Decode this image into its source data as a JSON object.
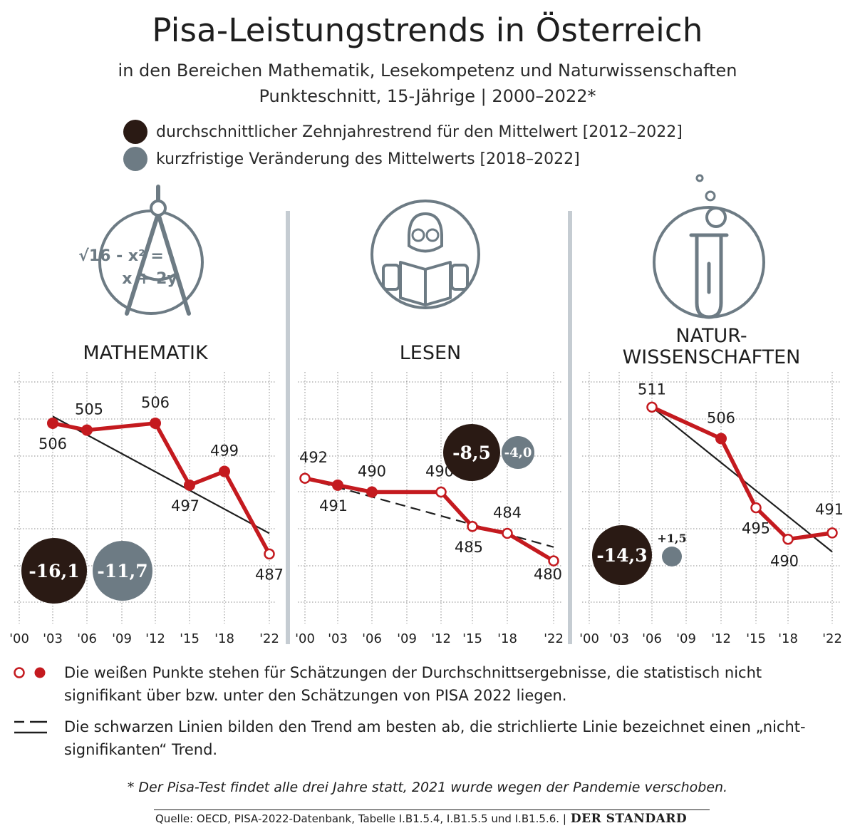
{
  "title": "Pisa-Leistungstrends in Österreich",
  "subtitle": "in den Bereichen Mathematik, Lesekompetenz und Naturwissenschaften",
  "subtitle2": "Punkteschnitt, 15-Jährige | 2000–2022*",
  "legend": {
    "trend10": "durchschnittlicher Zehnjahrestrend für den Mittelwert [2012–2022]",
    "short": "kurzfristige Veränderung des Mittelwerts [2018–2022]"
  },
  "colors": {
    "line": "#c41a1f",
    "dark_bubble": "#2a1a14",
    "grey_bubble": "#6d7b84",
    "divider": "#c5ccd2",
    "icon": "#6d7b84"
  },
  "icons": [
    "compass-formula-icon",
    "reader-book-icon",
    "test-tube-icon"
  ],
  "chart_data": [
    {
      "type": "line",
      "title": "MATHEMATIK",
      "x": [
        2003,
        2006,
        2012,
        2015,
        2018,
        2022
      ],
      "x_ticks": [
        "'00",
        "'03",
        "'06",
        "'09",
        "'12",
        "'15",
        "'18",
        "'22"
      ],
      "values": [
        506,
        505,
        506,
        497,
        499,
        487
      ],
      "labels": [
        "506",
        "505",
        "506",
        "497",
        "499",
        "487"
      ],
      "significant": [
        true,
        true,
        true,
        true,
        true,
        false
      ],
      "trend": {
        "from": [
          2003,
          507
        ],
        "to": [
          2022,
          490
        ],
        "dashed": false
      },
      "trend10": "-16,1",
      "short_change": "-11,7",
      "grid": true
    },
    {
      "type": "line",
      "title": "LESEN",
      "x": [
        2000,
        2003,
        2006,
        2012,
        2015,
        2018,
        2022
      ],
      "x_ticks": [
        "'00",
        "'03",
        "'06",
        "'09",
        "'12",
        "'15",
        "'18",
        "'22"
      ],
      "values": [
        492,
        491,
        490,
        490,
        485,
        484,
        480
      ],
      "labels": [
        "492",
        "491",
        "490",
        "490",
        "485",
        "484",
        "480"
      ],
      "significant": [
        false,
        true,
        true,
        false,
        false,
        false,
        false
      ],
      "trend": {
        "from": [
          2000,
          492
        ],
        "to": [
          2022,
          482
        ],
        "dashed": true
      },
      "trend10": "-8,5",
      "short_change": "-4,0",
      "grid": true
    },
    {
      "type": "line",
      "title": "NATUR-\nWISSENSCHAFTEN",
      "title_lines": [
        "NATUR-",
        "WISSENSCHAFTEN"
      ],
      "x": [
        2006,
        2012,
        2015,
        2018,
        2022
      ],
      "x_ticks": [
        "'00",
        "'03",
        "'06",
        "'09",
        "'12",
        "'15",
        "'18",
        "'22"
      ],
      "values": [
        511,
        506,
        495,
        490,
        491
      ],
      "labels": [
        "511",
        "506",
        "495",
        "490",
        "491"
      ],
      "significant": [
        false,
        true,
        false,
        false,
        false
      ],
      "trend": {
        "from": [
          2006,
          511
        ],
        "to": [
          2022,
          488
        ],
        "dashed": false
      },
      "trend10": "-14,3",
      "short_change": "+1,5",
      "grid": true
    }
  ],
  "notes": {
    "points": "Die weißen Punkte stehen für Schätzungen der Durchschnittsergebnisse, die statistisch nicht signifikant über bzw. unter den Schätzungen von PISA 2022 liegen.",
    "lines": "Die schwarzen Linien bilden den Trend am besten ab, die strichlierte Linie bezeichnet einen „nicht-signifikanten“ Trend."
  },
  "footnote": "* Der Pisa-Test findet alle drei Jahre statt, 2021 wurde wegen der Pandemie verschoben.",
  "source": "Quelle: OECD, PISA-2022-Datenbank, Tabelle I.B1.5.4, I.B1.5.5 und I.B1.5.6. |",
  "brand": "DER STANDARD"
}
